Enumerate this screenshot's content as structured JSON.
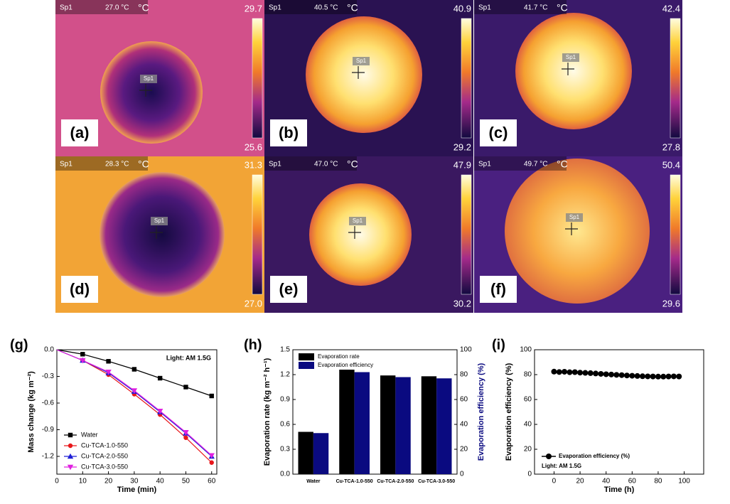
{
  "thermal_images": [
    {
      "label": "(a)",
      "spot": "Sp1",
      "reading": "27.0 °C",
      "unit": "°C",
      "scale_max": "29.7",
      "scale_min": "25.6",
      "marker": "Sp1"
    },
    {
      "label": "(b)",
      "spot": "Sp1",
      "reading": "40.5 °C",
      "unit": "°C",
      "scale_max": "40.9",
      "scale_min": "29.2",
      "marker": "Sp1"
    },
    {
      "label": "(c)",
      "spot": "Sp1",
      "reading": "41.7 °C",
      "unit": "°C",
      "scale_max": "42.4",
      "scale_min": "27.8",
      "marker": "Sp1"
    },
    {
      "label": "(d)",
      "spot": "Sp1",
      "reading": "28.3 °C",
      "unit": "°C",
      "scale_max": "31.3",
      "scale_min": "27.0",
      "marker": "Sp1"
    },
    {
      "label": "(e)",
      "spot": "Sp1",
      "reading": "47.0 °C",
      "unit": "°C",
      "scale_max": "47.9",
      "scale_min": "30.2",
      "marker": "Sp1"
    },
    {
      "label": "(f)",
      "spot": "Sp1",
      "reading": "49.7 °C",
      "unit": "°C",
      "scale_max": "50.4",
      "scale_min": "29.6",
      "marker": "Sp1"
    }
  ],
  "chart_data": [
    {
      "type": "line",
      "panel_label": "(g)",
      "xlabel": "Time (min)",
      "ylabel": "Mass change (kg m⁻²)",
      "annotation": "Light: AM 1.5G",
      "x": [
        0,
        10,
        20,
        30,
        40,
        50,
        60
      ],
      "xlim": [
        0,
        62
      ],
      "xticks": [
        0,
        10,
        20,
        30,
        40,
        50,
        60
      ],
      "ylim": [
        -1.4,
        0
      ],
      "yticks": [
        {
          "value": 0,
          "label": "0.0"
        },
        -0.3,
        -0.6,
        -0.9,
        -1.2
      ],
      "legend": "lower left",
      "series": [
        {
          "name": "Water",
          "color": "#000000",
          "marker": "square",
          "values": [
            0,
            -0.05,
            -0.13,
            -0.22,
            -0.32,
            -0.42,
            -0.52
          ]
        },
        {
          "name": "Cu-TCA-1.0-550",
          "color": "#e8171b",
          "marker": "circle",
          "values": [
            0,
            -0.12,
            -0.28,
            -0.5,
            -0.73,
            -0.99,
            -1.27
          ]
        },
        {
          "name": "Cu-TCA-2.0-550",
          "color": "#1f1fd6",
          "marker": "triangle",
          "values": [
            0,
            -0.12,
            -0.26,
            -0.47,
            -0.7,
            -0.94,
            -1.2
          ]
        },
        {
          "name": "Cu-TCA-3.0-550",
          "color": "#e020e0",
          "marker": "triangle-down",
          "values": [
            0,
            -0.12,
            -0.25,
            -0.46,
            -0.69,
            -0.93,
            -1.19
          ]
        }
      ]
    },
    {
      "type": "bar",
      "panel_label": "(h)",
      "ylabel": "Evaporation rate (kg m⁻² h⁻¹)",
      "y2label": "Evaporation efficiency (%)",
      "categories": [
        "Water",
        "Cu-TCA-1.0-550",
        "Cu-TCA-2.0-550",
        "Cu-TCA-3.0-550"
      ],
      "ylim": [
        0,
        1.5
      ],
      "yticks": [
        {
          "value": 0,
          "label": "0.0"
        },
        0.3,
        0.6,
        0.9,
        1.2,
        1.5
      ],
      "y2lim": [
        0,
        100
      ],
      "y2ticks": [
        0,
        20,
        40,
        60,
        80,
        100
      ],
      "legend": "upper left",
      "series": [
        {
          "name": "Evaporation rate",
          "color": "#000000",
          "values": [
            0.51,
            1.26,
            1.19,
            1.18
          ]
        },
        {
          "name": "Evaporation efficiency",
          "color": "#0a0a80",
          "axis": "y2",
          "values": [
            33,
            82,
            78,
            77
          ]
        }
      ]
    },
    {
      "type": "scatter",
      "panel_label": "(i)",
      "xlabel": "Time (h)",
      "ylabel": "Evaporation efficiency (%)",
      "annotation": "Light: AM 1.5G",
      "xlim": [
        -15,
        115
      ],
      "xticks": [
        0,
        20,
        40,
        60,
        80,
        100
      ],
      "ylim": [
        0,
        100
      ],
      "yticks": [
        0,
        20,
        40,
        60,
        80,
        100
      ],
      "legend": "lower left",
      "series": [
        {
          "name": "Evaporation efficiency (%)",
          "color": "#000000",
          "x": [
            0,
            4,
            8,
            12,
            16,
            20,
            24,
            28,
            32,
            36,
            40,
            44,
            48,
            52,
            56,
            60,
            64,
            68,
            72,
            76,
            80,
            84,
            88,
            92,
            96
          ],
          "values": [
            82.4,
            82.1,
            82.3,
            81.9,
            82.0,
            81.6,
            81.4,
            81.2,
            80.9,
            80.6,
            80.3,
            80.1,
            79.8,
            79.6,
            79.3,
            79.1,
            78.9,
            78.7,
            78.6,
            78.5,
            78.4,
            78.4,
            78.5,
            78.6,
            78.5
          ]
        }
      ]
    }
  ]
}
